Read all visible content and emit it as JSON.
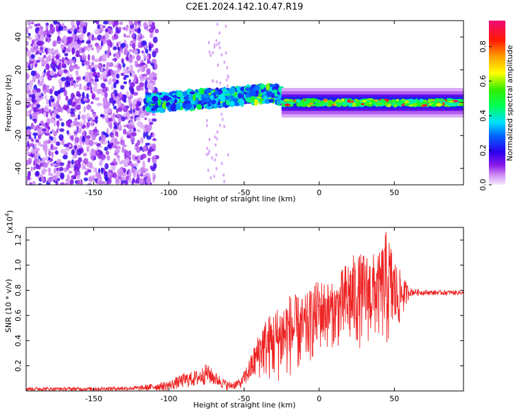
{
  "title": "C2E1.2024.142.10.47.R19",
  "chart_data": [
    {
      "type": "heatmap",
      "description_label": "spectrogram",
      "xlabel": "Height of straight line (km)",
      "ylabel": "Frequency (Hz)",
      "xlim": [
        -195,
        96
      ],
      "ylim": [
        -50,
        50
      ],
      "xticks": [
        -150,
        -100,
        -50,
        0,
        50
      ],
      "yticks": [
        -40,
        -20,
        0,
        20,
        40
      ],
      "colorbar": {
        "label": "Normalized spectral amplitude",
        "range": [
          0.0,
          0.95
        ],
        "ticks": [
          0.0,
          0.2,
          0.4,
          0.6,
          0.8
        ]
      },
      "features": [
        {
          "region": "x < -108",
          "content": "scattered low-amplitude noise across all frequencies"
        },
        {
          "region": "-108 to -25",
          "content": "central band near 0 Hz with amplitude ~0.2-0.5, slight positive frequency offset rising to ~8 Hz near -30 km"
        },
        {
          "region": "-25 to 96",
          "content": "narrow band at 0 Hz with amplitude ~0.5-0.9"
        }
      ]
    },
    {
      "type": "line",
      "xlabel": "Height of straight line (km)",
      "ylabel": "SNR (10 * v/v)",
      "yscale_label": "(x10",
      "yscale_exp": "4",
      "yscale_close": ")",
      "xlim": [
        -195,
        96
      ],
      "ylim": [
        0,
        1.3
      ],
      "xticks": [
        -150,
        -100,
        -50,
        0,
        50
      ],
      "yticks": [
        0.2,
        0.4,
        0.6,
        0.8,
        1.0,
        1.2
      ],
      "ytick_labels": [
        "0.2",
        "0.4",
        "0.6",
        "0.8",
        "1.0",
        "1.2"
      ],
      "color": "#ee2222",
      "envelope": [
        {
          "x": -195,
          "low": 0.0,
          "high": 0.03
        },
        {
          "x": -150,
          "low": 0.0,
          "high": 0.03
        },
        {
          "x": -120,
          "low": 0.0,
          "high": 0.04
        },
        {
          "x": -100,
          "low": 0.0,
          "high": 0.08
        },
        {
          "x": -90,
          "low": 0.02,
          "high": 0.14
        },
        {
          "x": -80,
          "low": 0.03,
          "high": 0.17
        },
        {
          "x": -75,
          "low": 0.05,
          "high": 0.22
        },
        {
          "x": -68,
          "low": 0.03,
          "high": 0.14
        },
        {
          "x": -60,
          "low": 0.0,
          "high": 0.07
        },
        {
          "x": -52,
          "low": 0.02,
          "high": 0.1
        },
        {
          "x": -45,
          "low": 0.06,
          "high": 0.3
        },
        {
          "x": -38,
          "low": 0.1,
          "high": 0.55
        },
        {
          "x": -30,
          "low": 0.05,
          "high": 0.65
        },
        {
          "x": -20,
          "low": 0.1,
          "high": 0.78
        },
        {
          "x": -10,
          "low": 0.15,
          "high": 0.75
        },
        {
          "x": 0,
          "low": 0.3,
          "high": 0.9
        },
        {
          "x": 10,
          "low": 0.35,
          "high": 0.85
        },
        {
          "x": 20,
          "low": 0.3,
          "high": 1.08
        },
        {
          "x": 30,
          "low": 0.35,
          "high": 1.1
        },
        {
          "x": 40,
          "low": 0.4,
          "high": 1.1
        },
        {
          "x": 45,
          "low": 0.3,
          "high": 1.3
        },
        {
          "x": 52,
          "low": 0.45,
          "high": 1.0
        },
        {
          "x": 60,
          "low": 0.75,
          "high": 0.82
        },
        {
          "x": 70,
          "low": 0.76,
          "high": 0.8
        },
        {
          "x": 96,
          "low": 0.76,
          "high": 0.8
        }
      ]
    }
  ]
}
